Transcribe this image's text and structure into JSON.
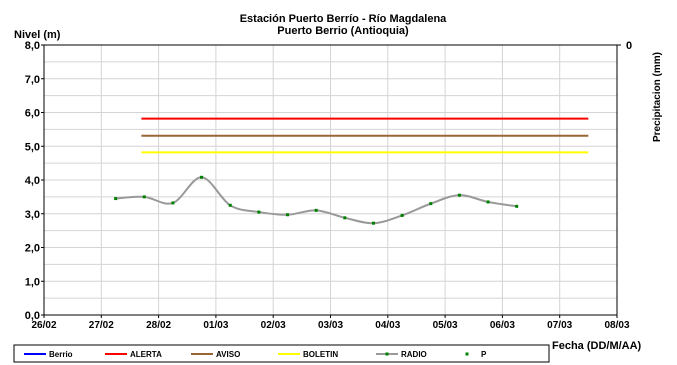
{
  "chart_data": {
    "type": "line",
    "title": "Estación Puerto Berrío - Río Magdalena",
    "subtitle": "Puerto Berrio (Antioquia)",
    "ylabel": "Nivel (m)",
    "y2label": "Precipitacion (mm)",
    "y2_tick": "0",
    "xlabel": "Fecha (DD/M/AA)",
    "ylim": [
      0,
      8
    ],
    "y_ticks": [
      "0,0",
      "1,0",
      "2,0",
      "3,0",
      "4,0",
      "5,0",
      "6,0",
      "7,0",
      "8,0"
    ],
    "x_ticks": [
      "26/02",
      "27/02",
      "28/02",
      "01/03",
      "02/03",
      "03/03",
      "04/03",
      "05/03",
      "06/03",
      "07/03",
      "08/03"
    ],
    "grid": true,
    "legend_position": "bottom",
    "thresholds": [
      {
        "name": "ALERTA",
        "value": 5.82,
        "color": "#ff0000"
      },
      {
        "name": "AVISO",
        "value": 5.31,
        "color": "#996633"
      },
      {
        "name": "BOLETIN",
        "value": 4.82,
        "color": "#ffff00"
      }
    ],
    "threshold_x_range": [
      1.7,
      9.5
    ],
    "series": [
      {
        "name": "Berrio",
        "color": "#0000ff",
        "values": []
      },
      {
        "name": "RADIO",
        "color": "#999999",
        "marker_color": "#008000",
        "x": [
          1.25,
          1.75,
          2.25,
          2.75,
          3.25,
          3.75,
          4.25,
          4.75,
          5.25,
          5.75,
          6.25,
          6.75,
          7.25,
          7.75,
          8.25
        ],
        "values": [
          3.45,
          3.5,
          3.32,
          4.08,
          3.25,
          3.05,
          2.97,
          3.1,
          2.88,
          2.72,
          2.95,
          3.3,
          3.55,
          3.35,
          3.22
        ]
      },
      {
        "name": "P",
        "color": "#008000",
        "values": []
      }
    ]
  }
}
